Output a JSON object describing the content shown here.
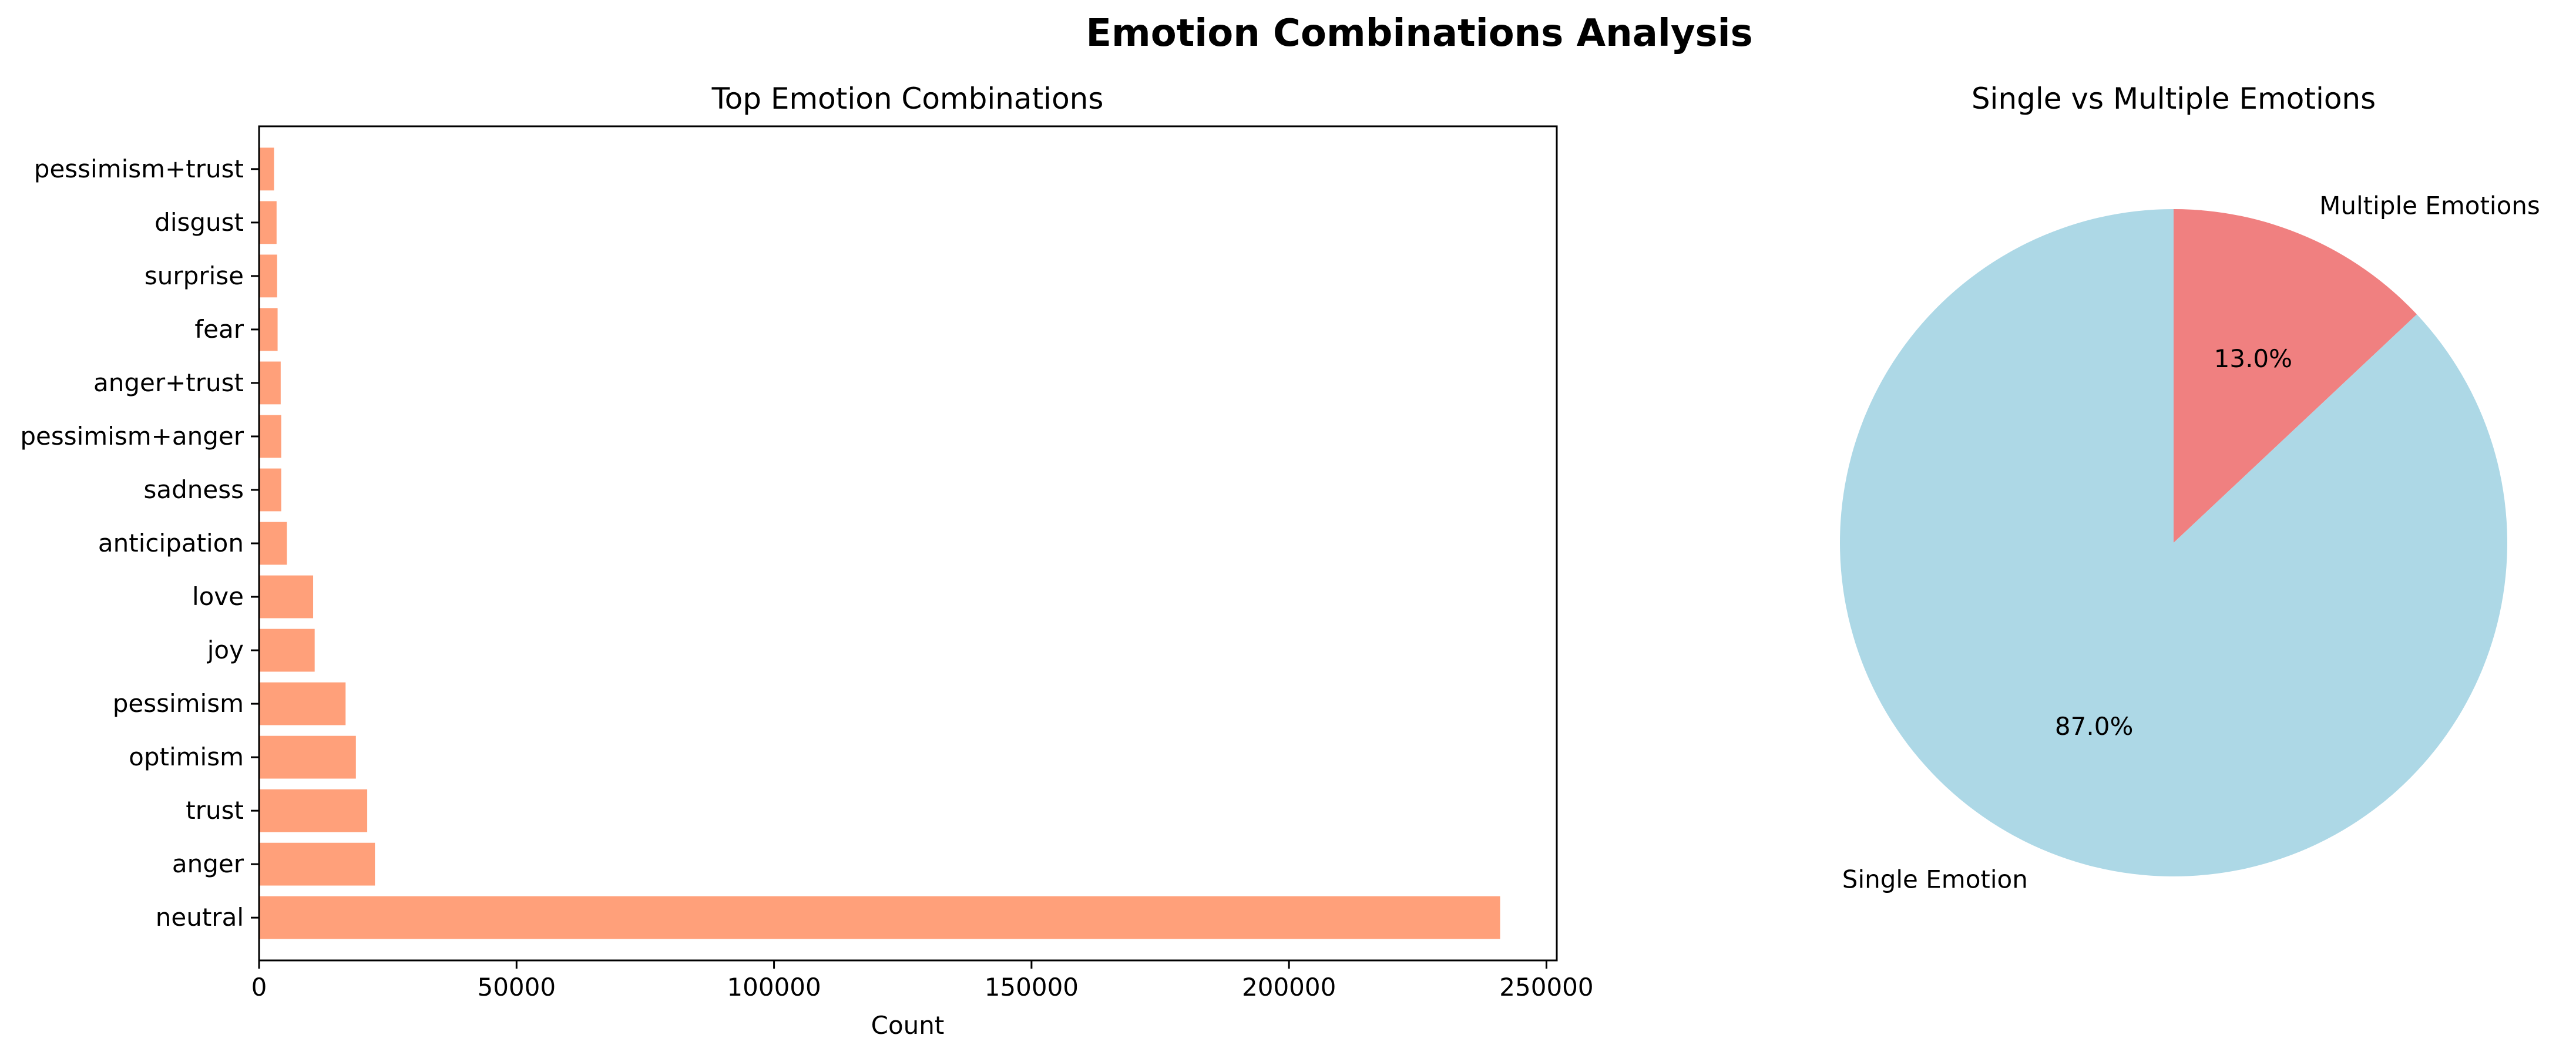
{
  "figure": {
    "title": "Emotion Combinations Analysis"
  },
  "chart_data": [
    {
      "type": "bar",
      "orientation": "horizontal",
      "title": "Top Emotion Combinations",
      "xlabel": "Count",
      "ylabel": "",
      "categories": [
        "neutral",
        "anger",
        "trust",
        "optimism",
        "pessimism",
        "joy",
        "love",
        "anticipation",
        "sadness",
        "pessimism+anger",
        "anger+trust",
        "fear",
        "surprise",
        "disgust",
        "pessimism+trust"
      ],
      "values": [
        241000,
        22500,
        21000,
        18800,
        16800,
        10800,
        10500,
        5400,
        4300,
        4300,
        4200,
        3600,
        3500,
        3400,
        2900
      ],
      "xlim": [
        0,
        252000
      ],
      "xticks": [
        0,
        50000,
        100000,
        150000,
        200000,
        250000
      ],
      "color": "#ffa07a",
      "grid": false,
      "legend": false
    },
    {
      "type": "pie",
      "title": "Single vs Multiple Emotions",
      "labels": [
        "Multiple Emotions",
        "Single Emotion"
      ],
      "values": [
        13.0,
        87.0
      ],
      "pct_labels": [
        "13.0%",
        "87.0%"
      ],
      "colors": [
        "#f08080",
        "#add8e6"
      ],
      "startangle": 90,
      "direction": "clockwise",
      "legend": false
    }
  ]
}
